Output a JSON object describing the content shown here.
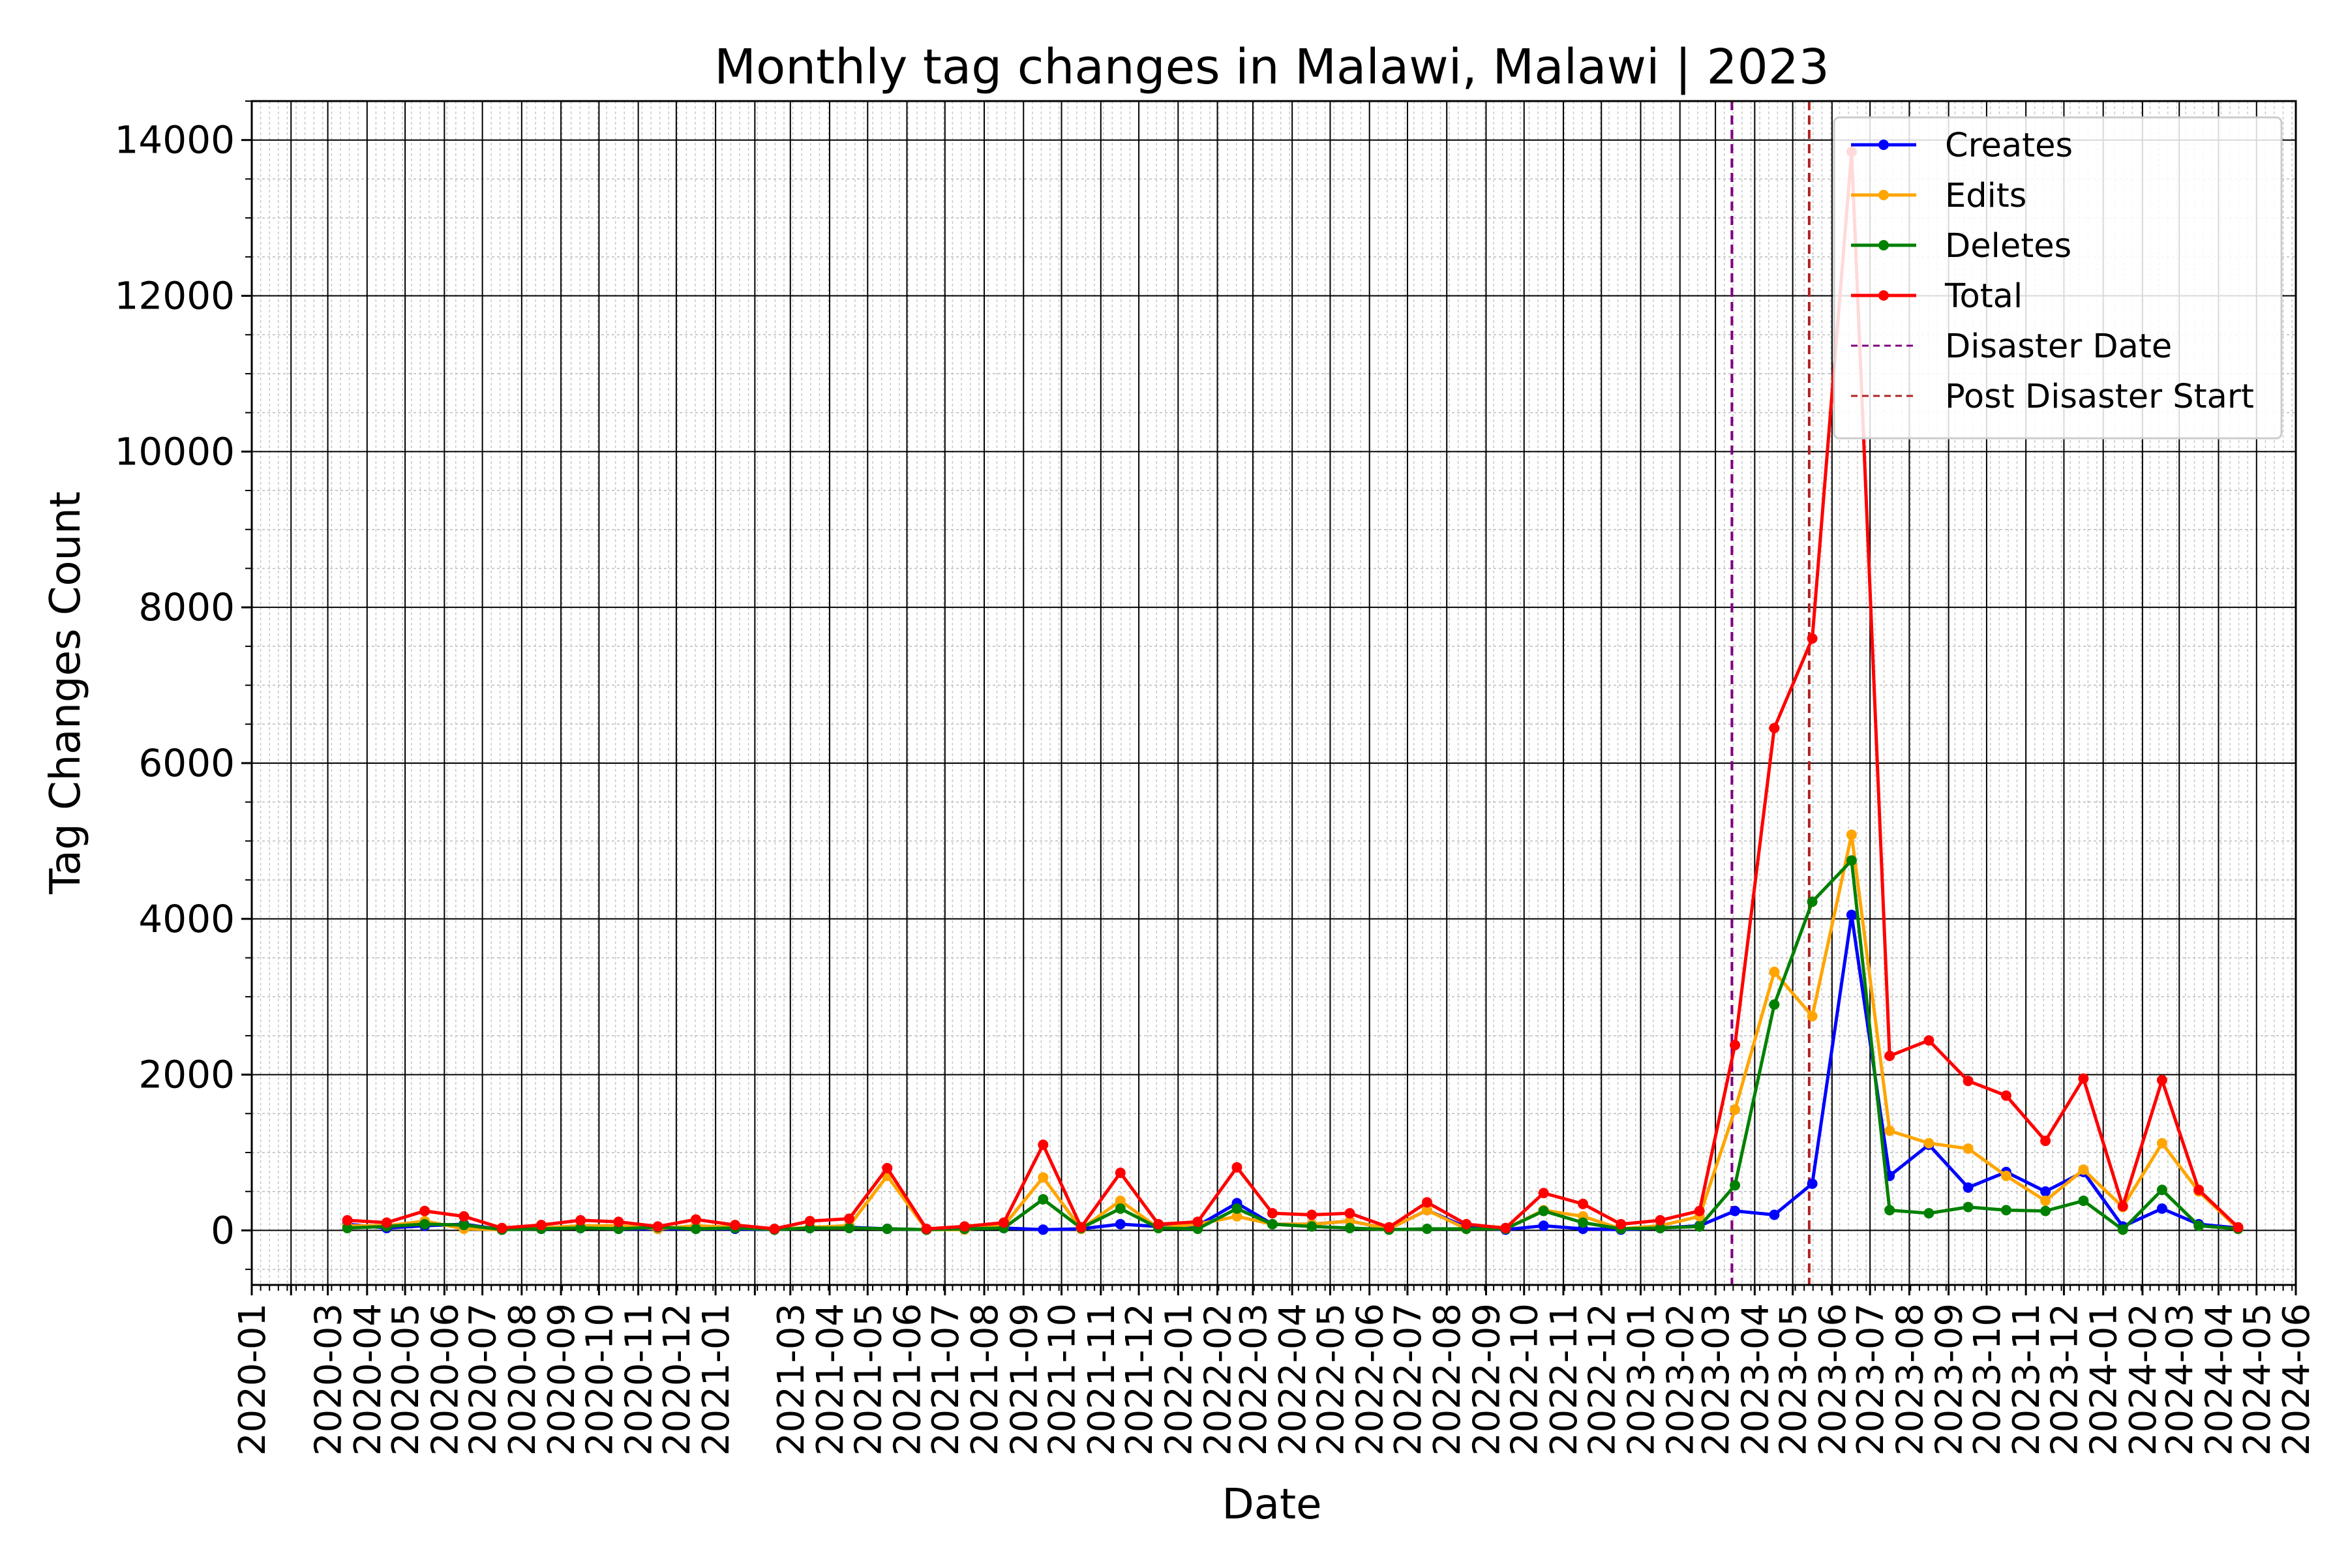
{
  "chart_data": {
    "type": "line",
    "title": "Monthly tag changes in Malawi, Malawi | 2023",
    "xlabel": "Date",
    "ylabel": "Tag Changes Count",
    "ylim": [
      -700,
      14500
    ],
    "y_ticks": [
      0,
      2000,
      4000,
      6000,
      8000,
      10000,
      12000,
      14000
    ],
    "x_range": [
      "2020-01",
      "2024-06"
    ],
    "x_tick_labels": [
      "2020-01",
      "2020-03",
      "2020-04",
      "2020-05",
      "2020-06",
      "2020-07",
      "2020-08",
      "2020-09",
      "2020-10",
      "2020-11",
      "2020-12",
      "2021-01",
      "2021-03",
      "2021-04",
      "2021-05",
      "2021-06",
      "2021-07",
      "2021-08",
      "2021-09",
      "2021-10",
      "2021-11",
      "2021-12",
      "2022-01",
      "2022-02",
      "2022-03",
      "2022-04",
      "2022-05",
      "2022-06",
      "2022-07",
      "2022-08",
      "2022-09",
      "2022-10",
      "2022-11",
      "2022-12",
      "2023-01",
      "2023-02",
      "2023-03",
      "2023-04",
      "2023-05",
      "2023-06",
      "2023-07",
      "2023-08",
      "2023-09",
      "2023-10",
      "2023-11",
      "2023-12",
      "2024-01",
      "2024-02",
      "2024-03",
      "2024-04",
      "2024-05",
      "2024-06"
    ],
    "grid": "major and minor",
    "legend_position": "top-right",
    "x": [
      "2020-03",
      "2020-04",
      "2020-05",
      "2020-06",
      "2020-07",
      "2020-08",
      "2020-09",
      "2020-10",
      "2020-11",
      "2020-12",
      "2021-01",
      "2021-02",
      "2021-03",
      "2021-04",
      "2021-05",
      "2021-06",
      "2021-07",
      "2021-08",
      "2021-09",
      "2021-10",
      "2021-11",
      "2021-12",
      "2022-01",
      "2022-02",
      "2022-03",
      "2022-04",
      "2022-05",
      "2022-06",
      "2022-07",
      "2022-08",
      "2022-09",
      "2022-10",
      "2022-11",
      "2022-12",
      "2023-01",
      "2023-02",
      "2023-03",
      "2023-04",
      "2023-05",
      "2023-06",
      "2023-07",
      "2023-08",
      "2023-09",
      "2023-10",
      "2023-11",
      "2023-12",
      "2024-01",
      "2024-02",
      "2024-03",
      "2024-04"
    ],
    "series": [
      {
        "name": "Creates",
        "color": "#0000ff",
        "values": [
          80,
          30,
          60,
          80,
          10,
          20,
          30,
          20,
          20,
          20,
          20,
          10,
          30,
          40,
          20,
          10,
          20,
          30,
          10,
          20,
          80,
          50,
          60,
          350,
          80,
          80,
          120,
          20,
          260,
          40,
          10,
          60,
          20,
          10,
          30,
          60,
          250,
          200,
          600,
          4050,
          700,
          1100,
          550,
          750,
          500,
          750,
          50,
          280,
          80,
          30
        ]
      },
      {
        "name": "Edits",
        "color": "#ffa500",
        "values": [
          60,
          60,
          120,
          20,
          10,
          30,
          60,
          60,
          20,
          60,
          40,
          10,
          40,
          60,
          700,
          10,
          10,
          60,
          680,
          20,
          380,
          30,
          80,
          180,
          80,
          80,
          120,
          20,
          260,
          20,
          20,
          260,
          180,
          20,
          60,
          180,
          1550,
          3320,
          2750,
          5080,
          1280,
          1120,
          1050,
          700,
          380,
          780,
          300,
          1120,
          500,
          20
        ]
      },
      {
        "name": "Deletes",
        "color": "#008000",
        "values": [
          30,
          50,
          80,
          70,
          10,
          20,
          30,
          20,
          40,
          20,
          30,
          10,
          30,
          30,
          20,
          10,
          20,
          30,
          400,
          30,
          280,
          30,
          20,
          280,
          80,
          50,
          30,
          10,
          20,
          20,
          20,
          250,
          100,
          20,
          30,
          50,
          580,
          2900,
          4220,
          4750,
          260,
          220,
          300,
          260,
          250,
          380,
          10,
          520,
          60,
          20
        ]
      },
      {
        "name": "Total",
        "color": "#ff0000",
        "values": [
          130,
          100,
          250,
          180,
          30,
          70,
          130,
          110,
          50,
          140,
          70,
          20,
          120,
          150,
          800,
          20,
          50,
          100,
          1100,
          40,
          740,
          80,
          110,
          810,
          220,
          200,
          220,
          40,
          360,
          80,
          30,
          480,
          340,
          80,
          130,
          250,
          2380,
          6450,
          7600,
          13850,
          2240,
          2440,
          1920,
          1730,
          1150,
          1950,
          310,
          1930,
          520,
          40
        ]
      }
    ],
    "vlines": [
      {
        "name": "Disaster Date",
        "color": "#800080",
        "date": "2023-03-14"
      },
      {
        "name": "Post Disaster Start",
        "color": "#b22222",
        "date": "2023-05-14"
      }
    ]
  }
}
